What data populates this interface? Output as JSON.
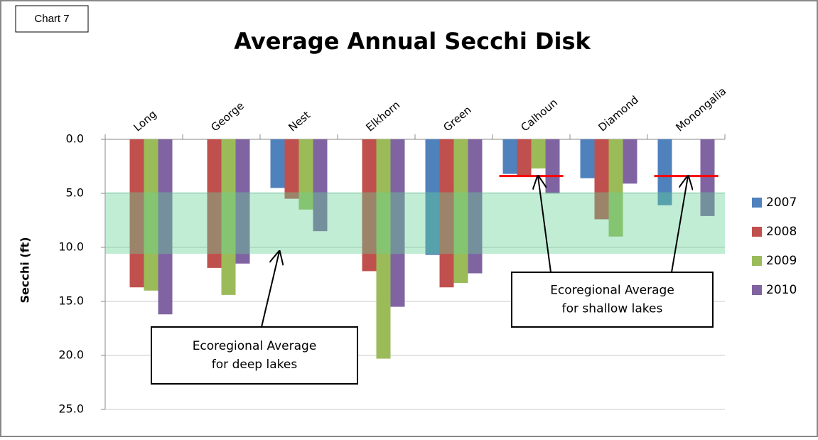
{
  "chart_data": {
    "type": "bar",
    "title": "Average Annual Secchi Disk",
    "label": "Chart 7",
    "y_label": "Secchi (ft)",
    "categories": [
      "Long",
      "George",
      "Nest",
      "Elkhorn",
      "Green",
      "Calhoun",
      "Diamond",
      "Monongalia"
    ],
    "series": [
      {
        "name": "2007",
        "color": "#4f81bd",
        "values": [
          null,
          null,
          4.5,
          null,
          10.7,
          3.2,
          3.6,
          6.1
        ]
      },
      {
        "name": "2008",
        "color": "#c0504d",
        "values": [
          13.7,
          11.9,
          5.5,
          12.2,
          13.7,
          3.4,
          7.4,
          null
        ]
      },
      {
        "name": "2009",
        "color": "#9bbb59",
        "values": [
          14.0,
          14.4,
          6.5,
          20.3,
          13.3,
          2.7,
          9.0,
          null
        ]
      },
      {
        "name": "2010",
        "color": "#8064a2",
        "values": [
          16.2,
          11.5,
          8.5,
          15.5,
          12.4,
          5.0,
          4.1,
          7.1
        ]
      }
    ],
    "ylim": [
      0,
      25
    ],
    "y_inverted": true,
    "yticks": [
      {
        "value": 0,
        "label": "0.0"
      },
      {
        "value": 5,
        "label": "5.0"
      },
      {
        "value": 10,
        "label": "10.0"
      },
      {
        "value": 15,
        "label": "15.0"
      },
      {
        "value": 20,
        "label": "20.0"
      },
      {
        "value": 25,
        "label": "25.0"
      }
    ],
    "grid": true,
    "legend": "right",
    "deep_range": {
      "values": [
        4.9,
        10.6
      ],
      "color": "#64d296"
    },
    "shallow_average": {
      "value": 3.4,
      "color": "#ff0000",
      "categories": [
        "Calhoun",
        "Monongalia"
      ]
    },
    "annotations": [
      {
        "lines": [
          "Ecoregional Average",
          "for deep lakes"
        ]
      },
      {
        "lines": [
          "Ecoregional Average",
          "for shallow lakes"
        ]
      }
    ]
  }
}
